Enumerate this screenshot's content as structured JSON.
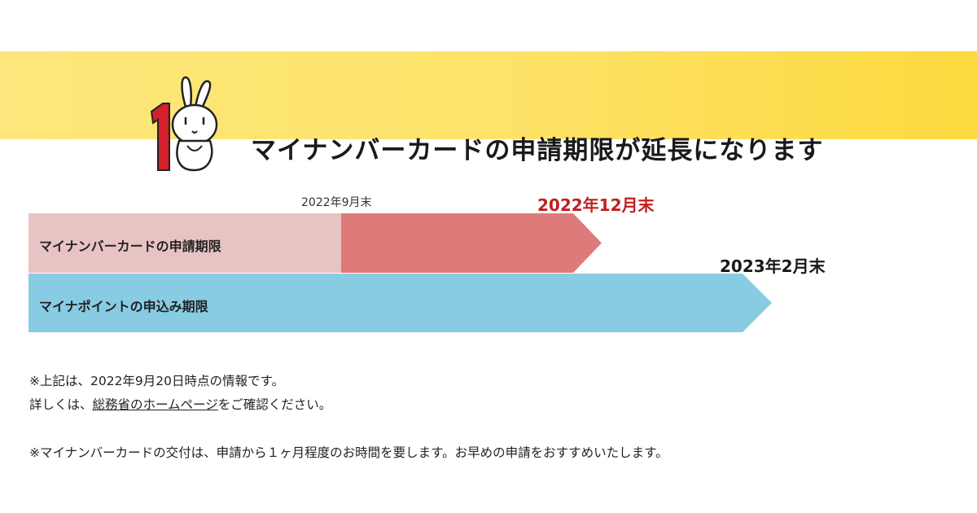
{
  "banner": {
    "title": "マイナンバーカードの申請期限が延長になります",
    "mascot_number": "1",
    "mascot_icon": "rabbit-mascot"
  },
  "timeline": {
    "original_deadline_label": "2022年9月末",
    "extended_deadline_label": "2022年12月末",
    "point_deadline_label": "2023年2月末",
    "card_bar_label": "マイナンバーカードの申請期限",
    "point_bar_label": "マイナポイントの申込み期限"
  },
  "notes": {
    "line1": "※上記は、2022年9月20日時点の情報です。",
    "line2_prefix": "詳しくは、",
    "line2_link": "総務省のホームページ",
    "line2_suffix": "をご確認ください。",
    "line3": "※マイナンバーカードの交付は、申請から１ヶ月程度のお時間を要します。お早めの申請をおすすめいたします。"
  },
  "colors": {
    "banner_yellow": "#fde36a",
    "card_original": "#e8c3c3",
    "card_extended": "#dc7b7a",
    "point_bar": "#87cce3",
    "accent_red": "#c0201f"
  }
}
